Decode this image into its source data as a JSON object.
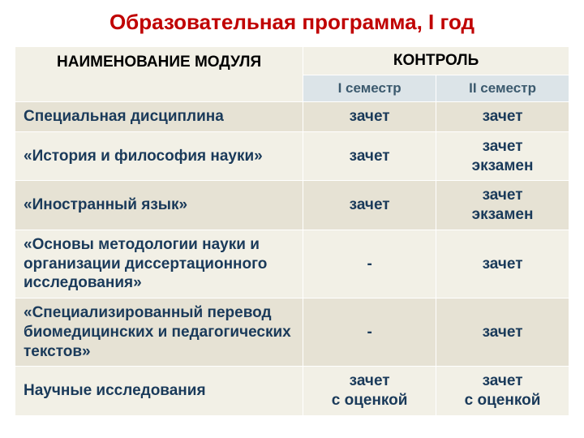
{
  "title": "Образовательная программа, I год",
  "headers": {
    "module": "НАИМЕНОВАНИЕ МОДУЛЯ",
    "control": "КОНТРОЛЬ",
    "sem1": "I семестр",
    "sem2": "II семестр"
  },
  "rows": [
    {
      "module": "Специальная дисциплина",
      "sem1": "зачет",
      "sem2": "зачет"
    },
    {
      "module": "«История и философия науки»",
      "sem1": "зачет",
      "sem2": "зачет\nэкзамен"
    },
    {
      "module": "«Иностранный язык»",
      "sem1": "зачет",
      "sem2": "зачет\nэкзамен"
    },
    {
      "module": "«Основы методологии науки и организации диссертационного исследования»",
      "sem1": "-",
      "sem2": "зачет"
    },
    {
      "module": "«Специализированный перевод биомедицинских и педагогических текстов»",
      "sem1": "-",
      "sem2": "зачет"
    },
    {
      "module": "Научные исследования",
      "sem1": "зачет\nс оценкой",
      "sem2": "зачет\nс оценкой"
    }
  ],
  "style": {
    "title_color": "#c00000",
    "header_bg": "#f2f0e6",
    "header_alt_bg": "#dce4e8",
    "row_bg": "#f2f0e6",
    "row_alt_bg": "#e6e2d4",
    "text_color": "#1a3a5a",
    "sem_header_color": "#3c5a6e",
    "font_size_title": 26,
    "font_size_header": 19,
    "font_size_cell": 19
  }
}
